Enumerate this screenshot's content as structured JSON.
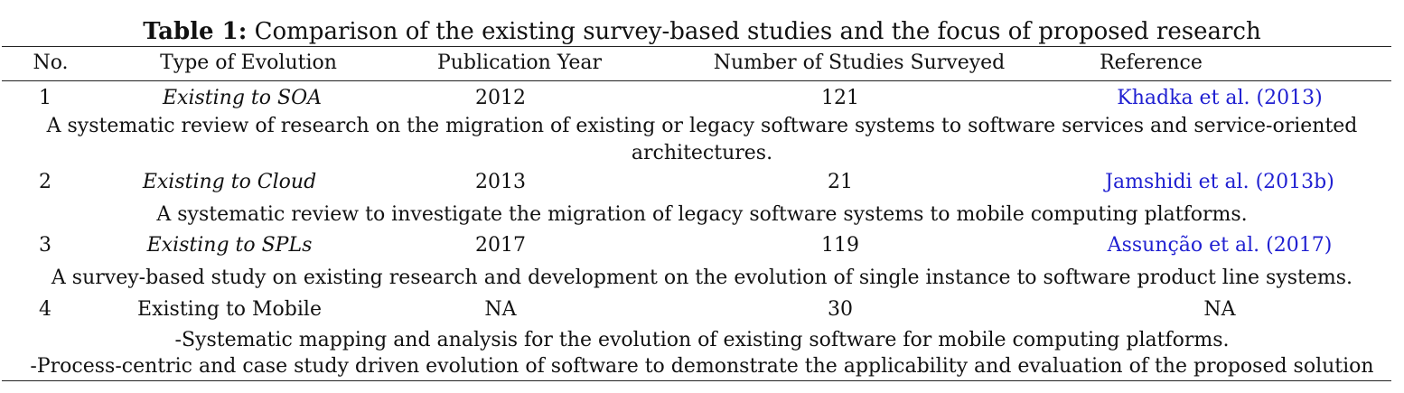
{
  "table": {
    "caption_label": "Table 1:",
    "caption_text": "Comparison of the existing survey-based studies and the focus of proposed research",
    "headers": [
      "No.",
      "Type of Evolution",
      "Publication Year",
      "Number of Studies Surveyed",
      "Reference"
    ],
    "rows": [
      {
        "no": "1",
        "type": "Existing to SOA",
        "year": "2012",
        "studies": "121",
        "reference": "Khadka et al. (2013)",
        "description_lines": [
          "A systematic review of research on the migration of existing or legacy software systems to software services and service-oriented",
          "architectures."
        ]
      },
      {
        "no": "2",
        "type": "Existing to Cloud",
        "year": "2013",
        "studies": "21",
        "reference": "Jamshidi et al. (2013b)",
        "description_lines": [
          "A systematic review to investigate the migration of legacy software systems to mobile computing platforms."
        ]
      },
      {
        "no": "3",
        "type": "Existing to SPLs",
        "year": "2017",
        "studies": "119",
        "reference": "Assunção et al. (2017)",
        "description_lines": [
          "A survey-based study on existing research and development on the evolution of single instance to software product line systems."
        ]
      },
      {
        "no": "4",
        "type": "Existing to Mobile",
        "year": "NA",
        "studies": "30",
        "reference": "NA",
        "description_lines": [
          "-Systematic mapping and analysis for the evolution of existing software for mobile computing platforms.",
          "-Process-centric and case study driven evolution of software to demonstrate the applicability and evaluation of the proposed solution"
        ]
      }
    ]
  },
  "colors": {
    "reference_link": "#1f1fd1",
    "text": "#111111",
    "rule": "#222222"
  }
}
